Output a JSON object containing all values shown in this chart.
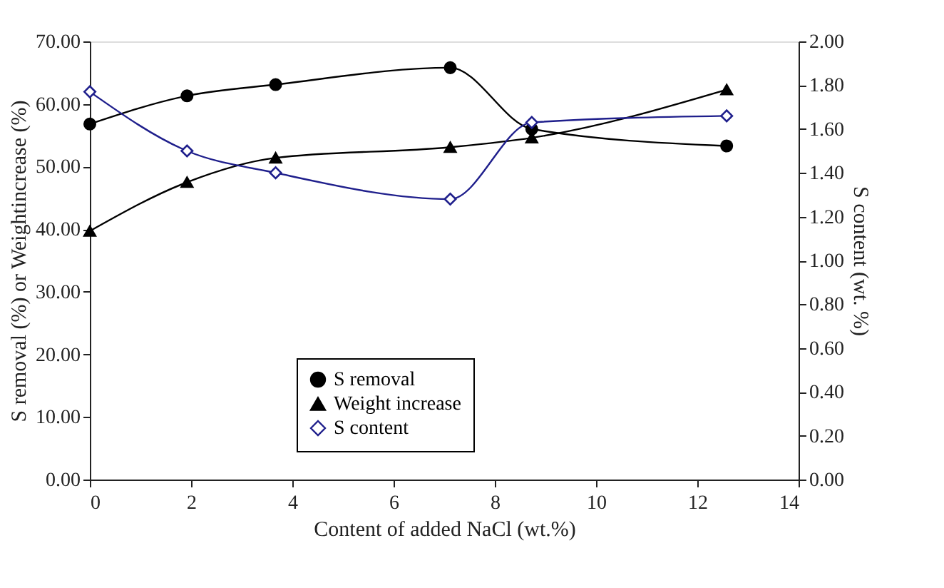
{
  "chart_data": {
    "type": "line",
    "xlabel": "Content of added NaCl (wt.%)",
    "ylabel": "S removal (%) or Weightincrease  (%)",
    "y2label": "S content (wt. %)",
    "x": [
      0,
      1.92,
      3.67,
      7.12,
      8.73,
      12.58
    ],
    "series": [
      {
        "name": "S removal",
        "color": "#000000",
        "marker": "circle",
        "values": [
          56.8,
          61.3,
          63.1,
          65.8,
          56.0,
          53.3
        ]
      },
      {
        "name": "Weight increase",
        "color": "#000000",
        "marker": "triangle",
        "values": [
          39.7,
          47.5,
          51.4,
          53.1,
          54.6,
          62.3
        ]
      },
      {
        "name": "S content",
        "color": "#1f1f8c",
        "marker": "diamond",
        "axis": "y2",
        "values": [
          1.77,
          1.5,
          1.4,
          1.28,
          1.63,
          1.66
        ]
      }
    ],
    "xlim": [
      0,
      14
    ],
    "xticks": [
      0,
      2,
      4,
      6,
      8,
      10,
      12,
      14
    ],
    "ylim": [
      0,
      70
    ],
    "yticks": [
      {
        "value": 0,
        "label": "0.00"
      },
      {
        "value": 10,
        "label": "10.00"
      },
      {
        "value": 20,
        "label": "20.00"
      },
      {
        "value": 30,
        "label": "30.00"
      },
      {
        "value": 40,
        "label": "40.00"
      },
      {
        "value": 50,
        "label": "50.00"
      },
      {
        "value": 60,
        "label": "60.00"
      },
      {
        "value": 70,
        "label": "70.00"
      }
    ],
    "y2lim": [
      0,
      2
    ],
    "y2ticks": [
      {
        "value": 0,
        "label": "0.00"
      },
      {
        "value": 0.2,
        "label": "0.20"
      },
      {
        "value": 0.4,
        "label": "0.40"
      },
      {
        "value": 0.6,
        "label": "0.60"
      },
      {
        "value": 0.8,
        "label": "0.80"
      },
      {
        "value": 1.0,
        "label": "1.00"
      },
      {
        "value": 1.2,
        "label": "1.20"
      },
      {
        "value": 1.4,
        "label": "1.40"
      },
      {
        "value": 1.6,
        "label": "1.60"
      },
      {
        "value": 1.8,
        "label": "1.80"
      },
      {
        "value": 2.0,
        "label": "2.00"
      }
    ],
    "grid": false,
    "legend": "bottom"
  }
}
